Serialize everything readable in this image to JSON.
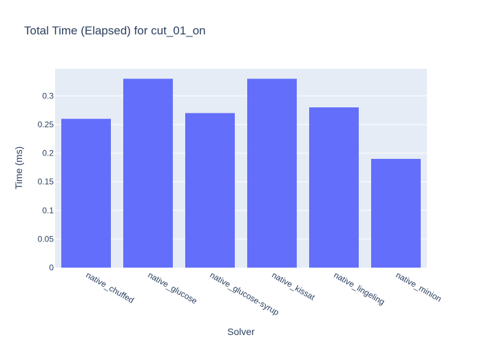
{
  "chart_data": {
    "type": "bar",
    "title": "Total Time (Elapsed) for cut_01_on",
    "xlabel": "Solver",
    "ylabel": "Time (ms)",
    "categories": [
      "native_chuffed",
      "native_glucose",
      "native_glucose-syrup",
      "native_kissat",
      "native_lingeling",
      "native_minion"
    ],
    "values": [
      0.26,
      0.33,
      0.27,
      0.33,
      0.28,
      0.19
    ],
    "ylim": [
      0,
      0.3474
    ],
    "yticks": [
      0,
      0.05,
      0.1,
      0.15,
      0.2,
      0.25,
      0.3
    ],
    "ytick_labels": [
      "0",
      "0.05",
      "0.1",
      "0.15",
      "0.2",
      "0.25",
      "0.3"
    ],
    "grid": true,
    "legend": "none",
    "colors": {
      "bar": "#636efa",
      "plot_background": "#e5ecf6",
      "grid": "#ffffff",
      "text": "#2a3f5f"
    }
  }
}
